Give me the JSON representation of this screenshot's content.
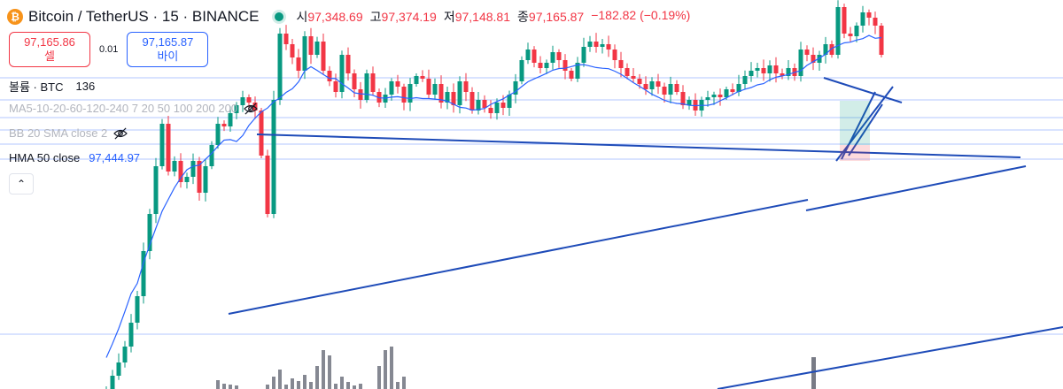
{
  "header": {
    "logo_glyph": "₿",
    "title": "Bitcoin / TetherUS · 15 · BINANCE",
    "ohlc": [
      {
        "label": "시",
        "value": "97,348.69"
      },
      {
        "label": "고",
        "value": "97,374.19"
      },
      {
        "label": "저",
        "value": "97,148.81"
      },
      {
        "label": "종",
        "value": "97,165.87"
      }
    ],
    "change": "−182.82 (−0.19%)"
  },
  "trade": {
    "sell_price": "97,165.86",
    "sell_label": "셀",
    "spread": "0.01",
    "buy_price": "97,165.87",
    "buy_label": "바이"
  },
  "indicators": {
    "volume": {
      "label": "볼륨 · BTC",
      "value": "136"
    },
    "ma": {
      "label": "MA5-10-20-60-120-240 7 20 50 100 200 200"
    },
    "bb": {
      "label": "BB 20 SMA close 2"
    },
    "hma": {
      "label": "HMA 50 close",
      "value": "97,444.97"
    },
    "collapse_glyph": "⌃"
  },
  "colors": {
    "up": "#089981",
    "down": "#f23645",
    "hma": "#2962ff",
    "trendline": "#1e4bb8",
    "hline": "#2962ff",
    "volume": "#787b86"
  },
  "icons": [
    "bitcoin-logo-icon",
    "eye-off-icon",
    "chevron-up-icon"
  ],
  "chart_data": {
    "type": "candlestick",
    "interval": "15",
    "y_unit": "USDT",
    "ylim": [
      96440,
      97400
    ],
    "candle_closes": [
      95900,
      95950,
      96000,
      96060,
      96150,
      96250,
      96420,
      96560,
      96740,
      96900,
      96720,
      96760,
      96680,
      96700,
      96760,
      96640,
      96740,
      96820,
      96900,
      96890,
      96940,
      96970,
      97000,
      96980,
      96950,
      96780,
      96560,
      96990,
      97240,
      97200,
      97150,
      97100,
      97230,
      97160,
      97210,
      97100,
      97060,
      97020,
      97160,
      97090,
      97030,
      96990,
      97090,
      97020,
      96980,
      97010,
      97060,
      97040,
      96980,
      97050,
      97080,
      97070,
      97010,
      97050,
      96980,
      97020,
      96970,
      97060,
      97020,
      96950,
      96990,
      96960,
      96940,
      96980,
      96960,
      97010,
      97060,
      97140,
      97180,
      97130,
      97110,
      97130,
      97170,
      97140,
      97100,
      97070,
      97130,
      97190,
      97210,
      97190,
      97200,
      97180,
      97140,
      97110,
      97080,
      97070,
      97050,
      97030,
      97060,
      97040,
      97010,
      97050,
      97020,
      96970,
      96990,
      96950,
      96990,
      97000,
      97010,
      97000,
      97030,
      97020,
      97050,
      97080,
      97100,
      97110,
      97090,
      97120,
      97090,
      97080,
      97110,
      97080,
      97180,
      97160,
      97130,
      97160,
      97200,
      97160,
      97340,
      97240,
      97230,
      97270,
      97320,
      97300,
      97270,
      97160
    ]
  }
}
